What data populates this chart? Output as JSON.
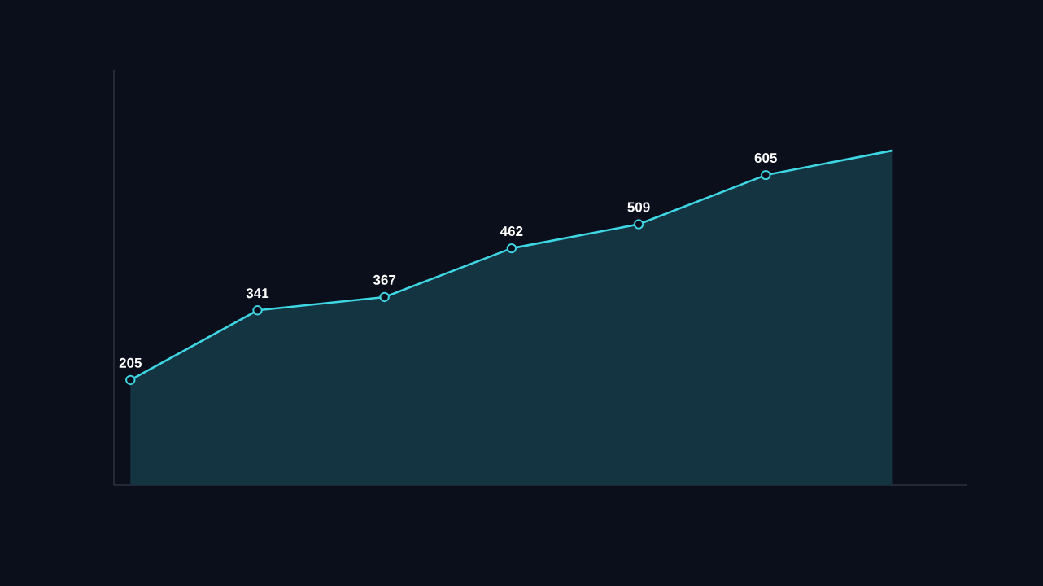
{
  "chart_data": {
    "type": "area",
    "categories": [
      null,
      null,
      null,
      null,
      null,
      null,
      null
    ],
    "values": [
      205,
      341,
      367,
      462,
      509,
      605,
      653
    ],
    "value_labels": [
      "205",
      "341",
      "367",
      "462",
      "509",
      "605",
      null
    ],
    "color": "#3fd6e4",
    "ylim": [
      0,
      810
    ],
    "tick_labels": false,
    "marker": "circle"
  }
}
